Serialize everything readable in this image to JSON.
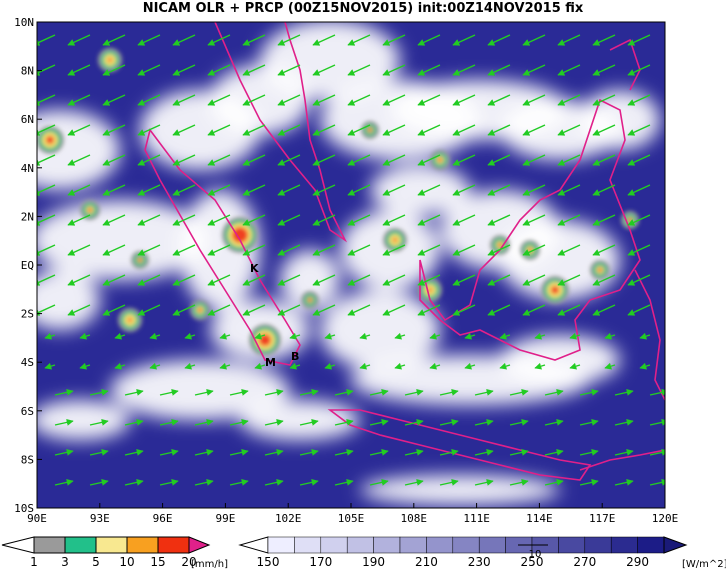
{
  "title": "NICAM OLR + PRCP (00Z15NOV2015) init:00Z14NOV2015 fix",
  "map": {
    "lon_ticks": [
      "90E",
      "93E",
      "96E",
      "99E",
      "102E",
      "105E",
      "108E",
      "111E",
      "114E",
      "117E",
      "120E"
    ],
    "lat_ticks": [
      "10N",
      "8N",
      "6N",
      "4N",
      "2N",
      "EQ",
      "2S",
      "4S",
      "6S",
      "8S",
      "10S"
    ],
    "places": [
      "K",
      "M",
      "B"
    ]
  },
  "precip_colorbar": {
    "labels": [
      1,
      3,
      5,
      10,
      15,
      20
    ],
    "unit": "[mm/h]"
  },
  "olr_colorbar": {
    "labels": [
      150,
      170,
      190,
      210,
      230,
      250,
      270,
      290
    ],
    "unit": "[W/m^2]"
  },
  "vector_reference": "10"
}
